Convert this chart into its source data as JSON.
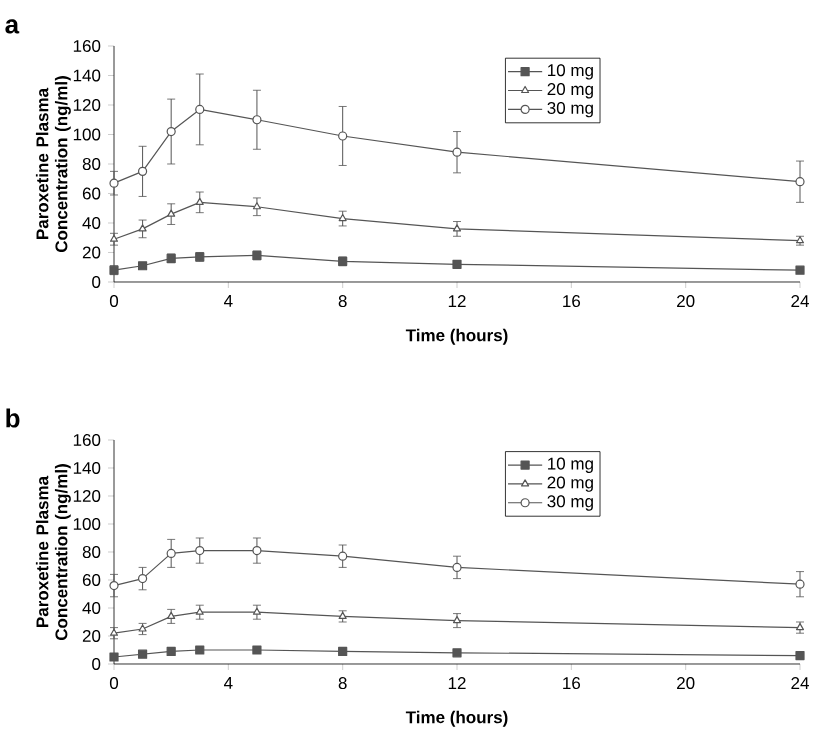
{
  "chart_data": [
    {
      "type": "line",
      "title": "a",
      "xlabel": "Time (hours)",
      "ylabel": "Paroxetine Plasma Concentration (ng/ml)",
      "x": [
        0,
        1,
        2,
        3,
        5,
        8,
        12,
        24
      ],
      "xlim": [
        0,
        24
      ],
      "xticks": [
        0,
        4,
        8,
        12,
        16,
        20,
        24
      ],
      "ylim": [
        0,
        160
      ],
      "yticks": [
        0,
        20,
        40,
        60,
        80,
        100,
        120,
        140,
        160
      ],
      "legend": "top right",
      "grid": false,
      "series": [
        {
          "name": "10 mg",
          "color": "#555555",
          "marker": "square",
          "values": [
            8,
            11,
            16,
            17,
            18,
            14,
            12,
            8
          ],
          "errors": [
            3,
            2,
            3,
            3,
            3,
            3,
            2,
            2
          ]
        },
        {
          "name": "20 mg",
          "color": "#555555",
          "marker": "triangle",
          "values": [
            29,
            36,
            46,
            54,
            51,
            43,
            36,
            28
          ],
          "errors": [
            4,
            6,
            7,
            7,
            6,
            5,
            5,
            3
          ]
        },
        {
          "name": "30 mg",
          "color": "#555555",
          "marker": "circle",
          "values": [
            67,
            75,
            102,
            117,
            110,
            99,
            88,
            68
          ],
          "errors": [
            8,
            17,
            22,
            24,
            20,
            20,
            14,
            14
          ]
        }
      ]
    },
    {
      "type": "line",
      "title": "b",
      "xlabel": "Time (hours)",
      "ylabel": "Paroxetine Plasma Concentration (ng/ml)",
      "x": [
        0,
        1,
        2,
        3,
        5,
        8,
        12,
        24
      ],
      "xlim": [
        0,
        24
      ],
      "xticks": [
        0,
        4,
        8,
        12,
        16,
        20,
        24
      ],
      "ylim": [
        0,
        160
      ],
      "yticks": [
        0,
        20,
        40,
        60,
        80,
        100,
        120,
        140,
        160
      ],
      "legend": "top right",
      "grid": false,
      "series": [
        {
          "name": "10 mg",
          "color": "#555555",
          "marker": "square",
          "values": [
            5,
            7,
            9,
            10,
            10,
            9,
            8,
            6
          ],
          "errors": [
            2,
            1,
            1,
            2,
            1,
            1,
            1,
            1
          ]
        },
        {
          "name": "20 mg",
          "color": "#555555",
          "marker": "triangle",
          "values": [
            22,
            25,
            34,
            37,
            37,
            34,
            31,
            26
          ],
          "errors": [
            4,
            4,
            5,
            5,
            5,
            4,
            5,
            4
          ]
        },
        {
          "name": "30 mg",
          "color": "#555555",
          "marker": "circle",
          "values": [
            56,
            61,
            79,
            81,
            81,
            77,
            69,
            57
          ],
          "errors": [
            8,
            8,
            10,
            9,
            9,
            8,
            8,
            9
          ]
        }
      ]
    }
  ]
}
